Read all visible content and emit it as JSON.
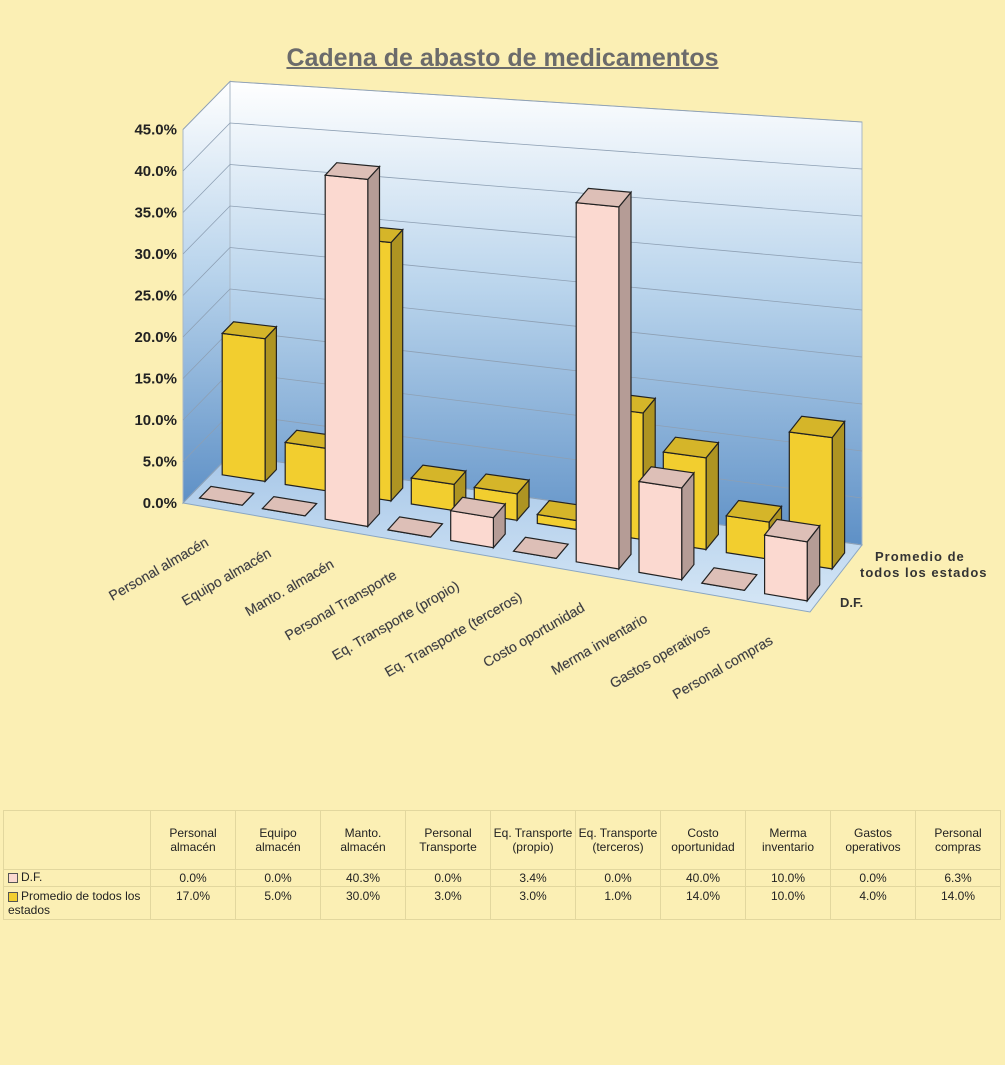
{
  "chart_data": {
    "type": "bar",
    "title": "Cadena de abasto de medicamentos",
    "categories": [
      "Personal almacén",
      "Equipo almacén",
      "Manto. almacén",
      "Personal Transporte",
      "Eq. Transporte (propio)",
      "Eq. Transporte (terceros)",
      "Costo oportunidad",
      "Merma inventario",
      "Gastos operativos",
      "Personal compras"
    ],
    "table_headers": [
      "Personal almacén",
      "Equipo almacén",
      "Manto. almacén",
      "Personal Transporte",
      "Eq. Transporte (propio)",
      "Eq. Transporte (terceros)",
      "Costo oportunidad",
      "Merma inventario",
      "Gastos operativos",
      "Personal compras"
    ],
    "series": [
      {
        "name": "D.F.",
        "color": "#fbd9d0",
        "values": [
          0.0,
          0.0,
          40.3,
          0.0,
          3.4,
          0.0,
          40.0,
          10.0,
          0.0,
          6.3
        ],
        "labels": [
          "0.0%",
          "0.0%",
          "40.3%",
          "0.0%",
          "3.4%",
          "0.0%",
          "40.0%",
          "10.0%",
          "0.0%",
          "6.3%"
        ]
      },
      {
        "name": "Promedio de todos los estados",
        "color": "#f2ce2f",
        "values": [
          17.0,
          5.0,
          30.0,
          3.0,
          3.0,
          1.0,
          14.0,
          10.0,
          4.0,
          14.0
        ],
        "labels": [
          "17.0%",
          "5.0%",
          "30.0%",
          "3.0%",
          "3.0%",
          "1.0%",
          "14.0%",
          "10.0%",
          "4.0%",
          "14.0%"
        ]
      }
    ],
    "yticks": [
      "0.0%",
      "5.0%",
      "10.0%",
      "15.0%",
      "20.0%",
      "25.0%",
      "30.0%",
      "35.0%",
      "40.0%",
      "45.0%"
    ],
    "ylim": [
      0,
      45
    ],
    "grid": true,
    "legend": "data-table"
  }
}
